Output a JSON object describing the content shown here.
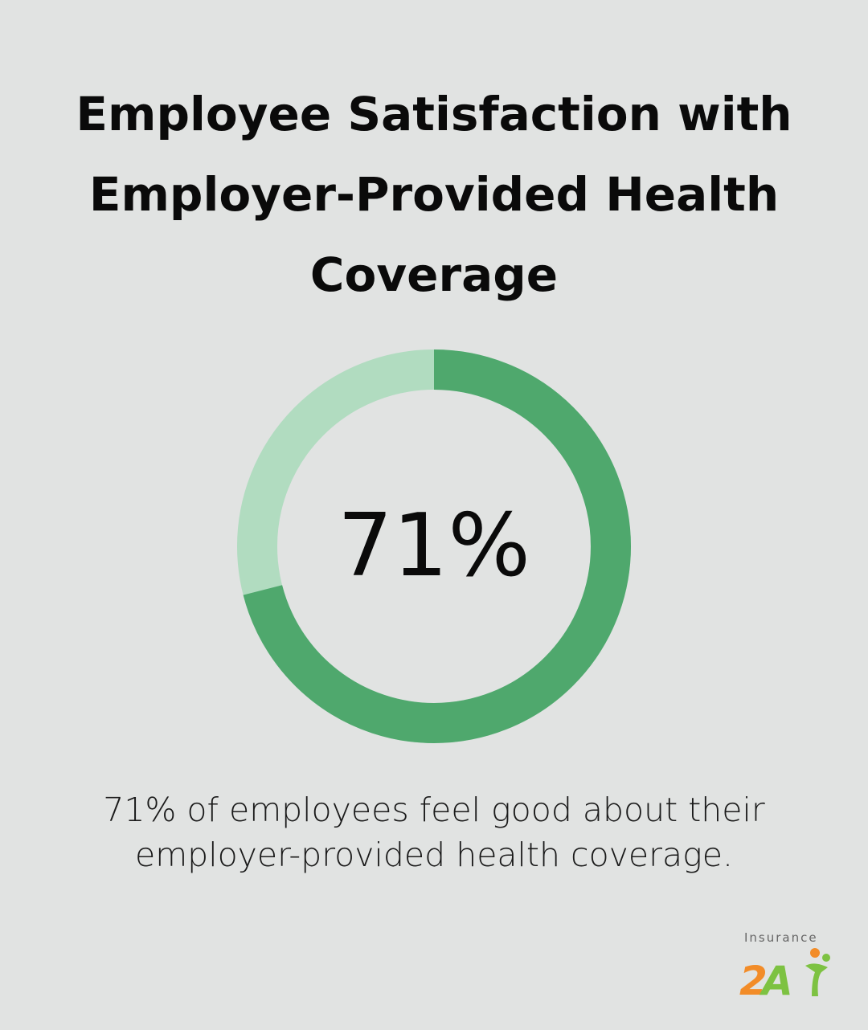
{
  "chart_data": {
    "type": "pie",
    "title": "Employee Satisfaction with Employer-Provided Health Coverage",
    "center_label": "71%",
    "values": [
      71,
      29
    ],
    "colors": [
      "#4fa86d",
      "#b1dcc0"
    ]
  },
  "caption": "71% of employees feel good about their employer-provided health coverage.",
  "logo": {
    "text": "Insurance",
    "colors": {
      "orange": "#f28c28",
      "green": "#7dc242"
    }
  }
}
